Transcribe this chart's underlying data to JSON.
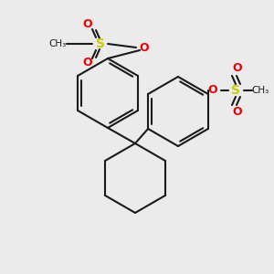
{
  "background_color": "#ebebeb",
  "bond_color": "#1a1a1a",
  "sulfur_color": "#cccc00",
  "oxygen_color": "#ee0000",
  "line_width": 1.5,
  "figsize": [
    3.0,
    3.0
  ],
  "dpi": 100,
  "xlim": [
    0,
    300
  ],
  "ylim": [
    0,
    300
  ]
}
